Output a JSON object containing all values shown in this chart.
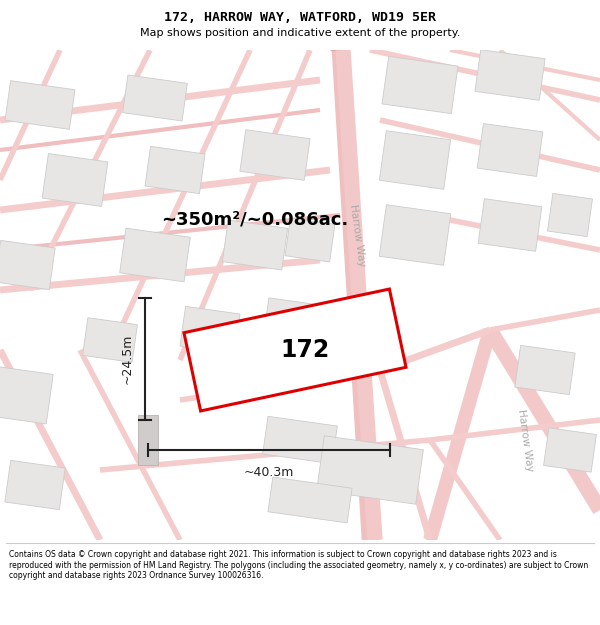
{
  "title": "172, HARROW WAY, WATFORD, WD19 5ER",
  "subtitle": "Map shows position and indicative extent of the property.",
  "area_label": "~350m²/~0.086ac.",
  "number_label": "172",
  "width_label": "~40.3m",
  "height_label": "~24.5m",
  "footer": "Contains OS data © Crown copyright and database right 2021. This information is subject to Crown copyright and database rights 2023 and is reproduced with the permission of HM Land Registry. The polygons (including the associated geometry, namely x, y co-ordinates) are subject to Crown copyright and database rights 2023 Ordnance Survey 100026316.",
  "bg_color": "#ffffff",
  "map_bg": "#f9f6f6",
  "road_color": "#f5c8c8",
  "road_border": "#f0b0b0",
  "block_color": "#e8e5e5",
  "block_border": "#cccccc",
  "highlight_color": "#dd0000",
  "title_color": "#000000",
  "text_color": "#000000",
  "street_label_color": "#aaaaaa",
  "dim_color": "#222222",
  "separator_color": "#cccccc",
  "map_border": "#cccccc"
}
